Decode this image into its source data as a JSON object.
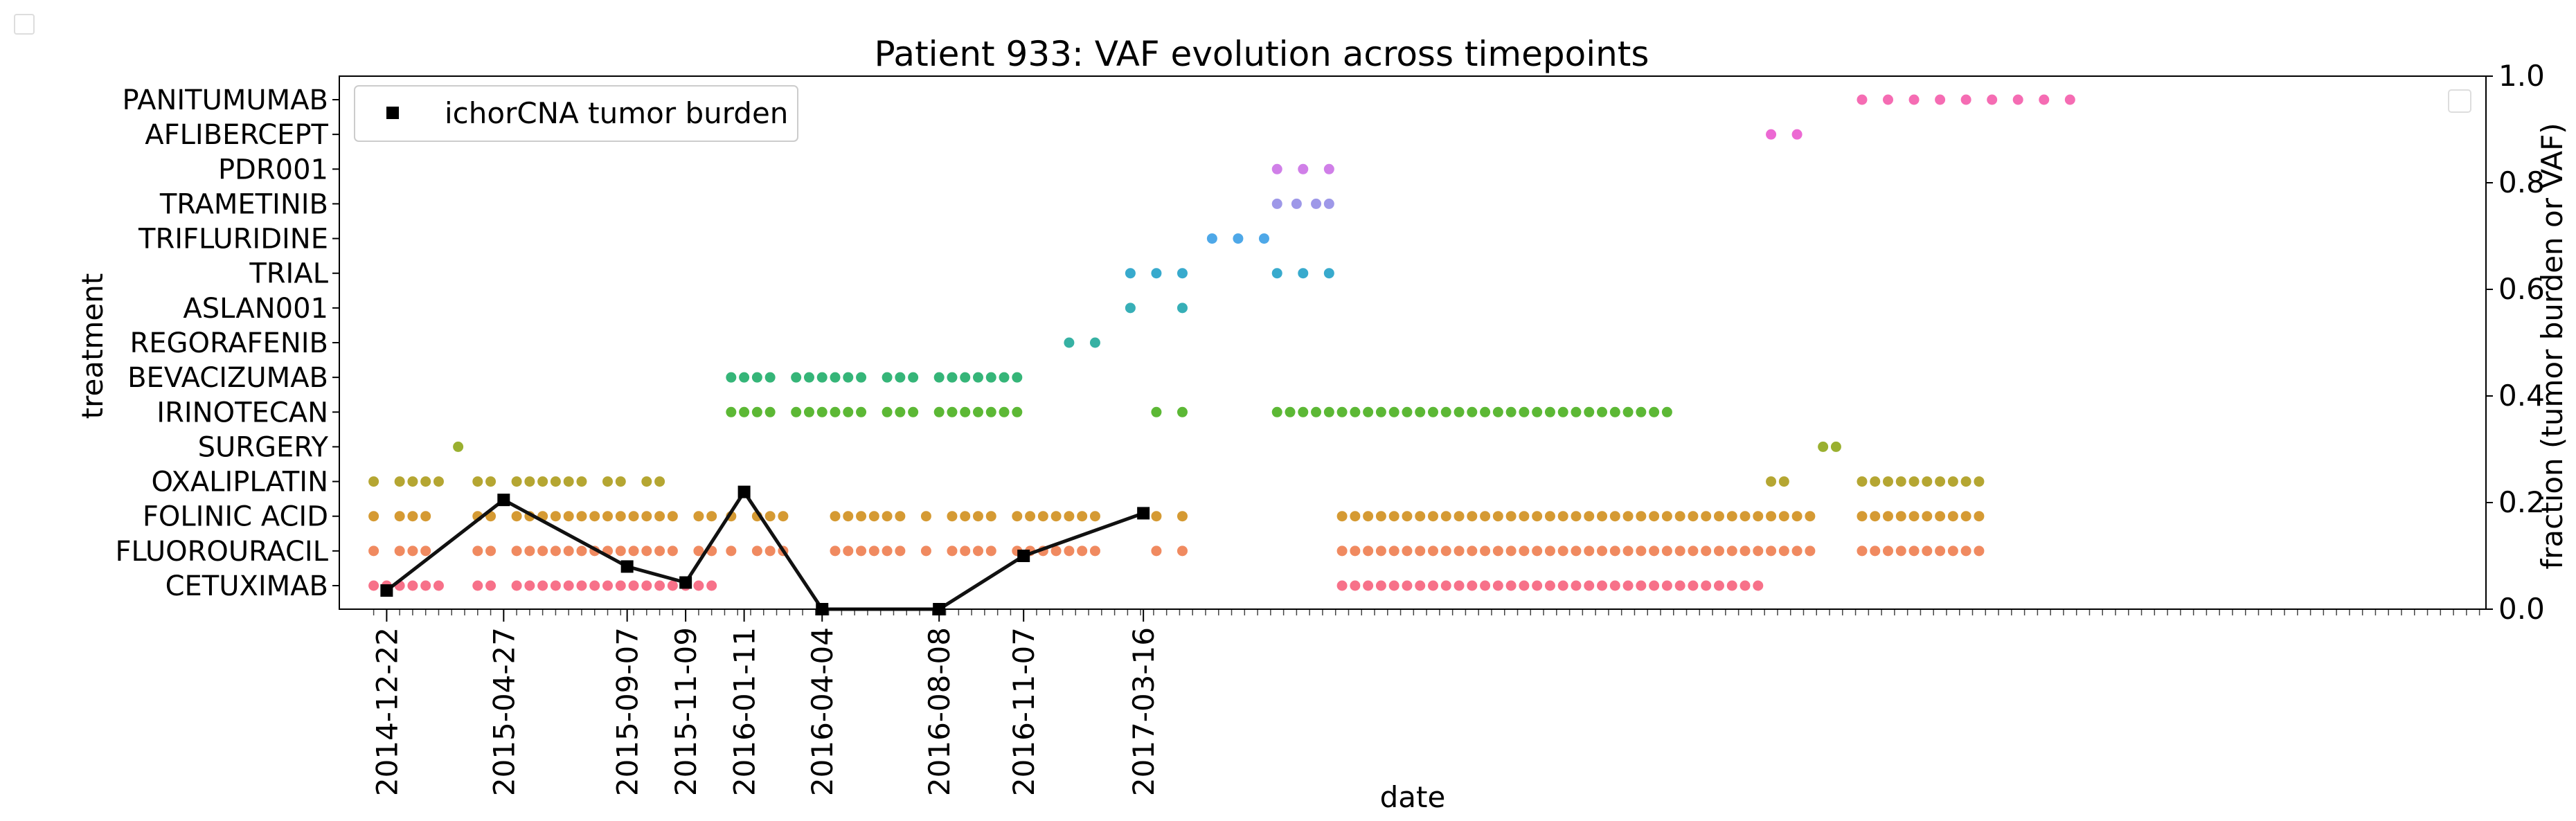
{
  "chart_data": {
    "type": "scatter",
    "title": "Patient 933: VAF evolution across timepoints",
    "xlabel": "date",
    "ylabel": "treatment",
    "y2label": "fraction (tumor burden or VAF)",
    "y2lim": [
      0.0,
      1.0
    ],
    "y2_ticks": [
      "0.0",
      "0.2",
      "0.4",
      "0.6",
      "0.8",
      "1.0"
    ],
    "x_range": [
      "2014-11-01",
      "2021-03-01"
    ],
    "x_tick_labels": [
      "2014-12-22",
      "2015-04-27",
      "2015-09-07",
      "2015-11-09",
      "2016-01-11",
      "2016-04-04",
      "2016-08-08",
      "2016-11-07",
      "2017-03-16"
    ],
    "legend": {
      "location": "top-left",
      "entries": [
        "ichorCNA tumor burden"
      ]
    },
    "treatments": [
      "CETUXIMAB",
      "FLUOROURACIL",
      "FOLINIC ACID",
      "OXALIPLATIN",
      "SURGERY",
      "IRINOTECAN",
      "BEVACIZUMAB",
      "REGORAFENIB",
      "ASLAN001",
      "TRIAL",
      "TRIFLURIDINE",
      "TRAMETINIB",
      "PDR001",
      "AFLIBERCEPT",
      "PANITUMUMAB"
    ],
    "treatment_colors": [
      "#f77189",
      "#f08a60",
      "#d59a33",
      "#b5a632",
      "#9ab030",
      "#5cb835",
      "#35b578",
      "#36b1a3",
      "#37afb7",
      "#38aacd",
      "#4ea8e8",
      "#9e98e8",
      "#d07fe8",
      "#ec69d3",
      "#f56cb3"
    ],
    "treatment_events": [
      {
        "treatment": "CETUXIMAB",
        "dates": [
          "2014-12-08",
          "2014-12-22",
          "2015-01-05",
          "2015-01-19",
          "2015-02-02",
          "2015-02-16",
          "2015-03-30",
          "2015-04-13",
          "2015-05-11",
          "2015-05-25",
          "2015-06-08",
          "2015-06-22",
          "2015-07-06",
          "2015-07-20",
          "2015-08-03",
          "2015-08-17",
          "2015-08-31",
          "2015-09-14",
          "2015-09-28",
          "2015-10-12",
          "2015-10-26",
          "2015-11-09",
          "2015-11-23",
          "2015-12-07",
          "2017-10-16",
          "2017-10-30",
          "2017-11-13",
          "2017-11-27",
          "2017-12-11",
          "2017-12-25",
          "2018-01-08",
          "2018-01-22",
          "2018-02-05",
          "2018-02-19",
          "2018-03-05",
          "2018-03-19",
          "2018-04-02",
          "2018-04-16",
          "2018-04-30",
          "2018-05-14",
          "2018-05-28",
          "2018-06-11",
          "2018-06-25",
          "2018-07-09",
          "2018-07-23",
          "2018-08-06",
          "2018-08-20",
          "2018-09-03",
          "2018-09-17",
          "2018-10-01",
          "2018-10-15",
          "2018-10-29",
          "2018-11-12",
          "2018-11-26",
          "2018-12-10",
          "2018-12-24",
          "2019-01-07"
        ]
      },
      {
        "treatment": "FLUOROURACIL",
        "dates": [
          "2014-12-08",
          "2015-01-05",
          "2015-01-19",
          "2015-02-02",
          "2015-03-30",
          "2015-04-13",
          "2015-05-11",
          "2015-05-25",
          "2015-06-08",
          "2015-06-22",
          "2015-07-06",
          "2015-07-20",
          "2015-08-03",
          "2015-08-17",
          "2015-08-31",
          "2015-09-14",
          "2015-09-28",
          "2015-10-12",
          "2015-10-26",
          "2015-11-23",
          "2015-12-07",
          "2015-12-28",
          "2016-01-25",
          "2016-02-08",
          "2016-02-22",
          "2016-04-18",
          "2016-05-02",
          "2016-05-16",
          "2016-05-30",
          "2016-06-13",
          "2016-06-27",
          "2016-07-25",
          "2016-08-22",
          "2016-09-05",
          "2016-09-19",
          "2016-10-03",
          "2016-10-31",
          "2016-11-14",
          "2016-11-28",
          "2016-12-12",
          "2016-12-26",
          "2017-01-09",
          "2017-01-23",
          "2017-03-30",
          "2017-04-27",
          "2017-10-16",
          "2017-10-30",
          "2017-11-13",
          "2017-11-27",
          "2017-12-11",
          "2017-12-25",
          "2018-01-08",
          "2018-01-22",
          "2018-02-05",
          "2018-02-19",
          "2018-03-05",
          "2018-03-19",
          "2018-04-02",
          "2018-04-16",
          "2018-04-30",
          "2018-05-14",
          "2018-05-28",
          "2018-06-11",
          "2018-06-25",
          "2018-07-09",
          "2018-07-23",
          "2018-08-06",
          "2018-08-20",
          "2018-09-03",
          "2018-09-17",
          "2018-10-01",
          "2018-10-15",
          "2018-10-29",
          "2018-11-12",
          "2018-11-26",
          "2018-12-10",
          "2018-12-24",
          "2019-01-07",
          "2019-01-21",
          "2019-02-04",
          "2019-02-18",
          "2019-03-04",
          "2019-04-29",
          "2019-05-13",
          "2019-05-27",
          "2019-06-10",
          "2019-06-24",
          "2019-07-08",
          "2019-07-22",
          "2019-08-05",
          "2019-08-19",
          "2019-09-02"
        ]
      },
      {
        "treatment": "FOLINIC ACID",
        "dates": [
          "2014-12-08",
          "2015-01-05",
          "2015-01-19",
          "2015-02-02",
          "2015-03-30",
          "2015-04-13",
          "2015-05-11",
          "2015-05-25",
          "2015-06-08",
          "2015-06-22",
          "2015-07-06",
          "2015-07-20",
          "2015-08-03",
          "2015-08-17",
          "2015-08-31",
          "2015-09-14",
          "2015-09-28",
          "2015-10-12",
          "2015-10-26",
          "2015-11-23",
          "2015-12-07",
          "2015-12-28",
          "2016-01-25",
          "2016-02-08",
          "2016-02-22",
          "2016-04-18",
          "2016-05-02",
          "2016-05-16",
          "2016-05-30",
          "2016-06-13",
          "2016-06-27",
          "2016-07-25",
          "2016-08-22",
          "2016-09-05",
          "2016-09-19",
          "2016-10-03",
          "2016-10-31",
          "2016-11-14",
          "2016-11-28",
          "2016-12-12",
          "2016-12-26",
          "2017-01-09",
          "2017-01-23",
          "2017-03-30",
          "2017-04-27",
          "2017-10-16",
          "2017-10-30",
          "2017-11-13",
          "2017-11-27",
          "2017-12-11",
          "2017-12-25",
          "2018-01-08",
          "2018-01-22",
          "2018-02-05",
          "2018-02-19",
          "2018-03-05",
          "2018-03-19",
          "2018-04-02",
          "2018-04-16",
          "2018-04-30",
          "2018-05-14",
          "2018-05-28",
          "2018-06-11",
          "2018-06-25",
          "2018-07-09",
          "2018-07-23",
          "2018-08-06",
          "2018-08-20",
          "2018-09-03",
          "2018-09-17",
          "2018-10-01",
          "2018-10-15",
          "2018-10-29",
          "2018-11-12",
          "2018-11-26",
          "2018-12-10",
          "2018-12-24",
          "2019-01-07",
          "2019-01-21",
          "2019-02-04",
          "2019-02-18",
          "2019-03-04",
          "2019-04-29",
          "2019-05-13",
          "2019-05-27",
          "2019-06-10",
          "2019-06-24",
          "2019-07-08",
          "2019-07-22",
          "2019-08-05",
          "2019-08-19",
          "2019-09-02"
        ]
      },
      {
        "treatment": "OXALIPLATIN",
        "dates": [
          "2014-12-08",
          "2015-01-05",
          "2015-01-19",
          "2015-02-02",
          "2015-02-16",
          "2015-03-30",
          "2015-04-13",
          "2015-05-11",
          "2015-05-25",
          "2015-06-08",
          "2015-06-22",
          "2015-07-06",
          "2015-07-20",
          "2015-08-17",
          "2015-08-31",
          "2015-09-28",
          "2015-10-12",
          "2019-01-21",
          "2019-02-04",
          "2019-04-29",
          "2019-05-13",
          "2019-05-27",
          "2019-06-10",
          "2019-06-24",
          "2019-07-08",
          "2019-07-22",
          "2019-08-05",
          "2019-08-19",
          "2019-09-02"
        ]
      },
      {
        "treatment": "SURGERY",
        "dates": [
          "2015-03-09",
          "2019-03-18",
          "2019-04-01"
        ]
      },
      {
        "treatment": "IRINOTECAN",
        "dates": [
          "2015-12-28",
          "2016-01-11",
          "2016-01-25",
          "2016-02-08",
          "2016-03-07",
          "2016-03-21",
          "2016-04-04",
          "2016-04-18",
          "2016-05-02",
          "2016-05-16",
          "2016-06-13",
          "2016-06-27",
          "2016-07-11",
          "2016-08-08",
          "2016-08-22",
          "2016-09-05",
          "2016-09-19",
          "2016-10-03",
          "2016-10-17",
          "2016-10-31",
          "2017-03-30",
          "2017-04-27",
          "2017-08-07",
          "2017-08-21",
          "2017-09-04",
          "2017-09-18",
          "2017-10-02",
          "2017-10-16",
          "2017-10-30",
          "2017-11-13",
          "2017-11-27",
          "2017-12-11",
          "2017-12-25",
          "2018-01-08",
          "2018-01-22",
          "2018-02-05",
          "2018-02-19",
          "2018-03-05",
          "2018-03-19",
          "2018-04-02",
          "2018-04-16",
          "2018-04-30",
          "2018-05-14",
          "2018-05-28",
          "2018-06-11",
          "2018-06-25",
          "2018-07-09",
          "2018-07-23",
          "2018-08-06",
          "2018-08-20",
          "2018-09-03",
          "2018-09-17",
          "2018-10-01"
        ]
      },
      {
        "treatment": "BEVACIZUMAB",
        "dates": [
          "2015-12-28",
          "2016-01-11",
          "2016-01-25",
          "2016-02-08",
          "2016-03-07",
          "2016-03-21",
          "2016-04-04",
          "2016-04-18",
          "2016-05-02",
          "2016-05-16",
          "2016-06-13",
          "2016-06-27",
          "2016-07-11",
          "2016-08-08",
          "2016-08-22",
          "2016-09-05",
          "2016-09-19",
          "2016-10-03",
          "2016-10-17",
          "2016-10-31"
        ]
      },
      {
        "treatment": "REGORAFENIB",
        "dates": [
          "2016-12-26",
          "2017-01-23"
        ]
      },
      {
        "treatment": "ASLAN001",
        "dates": [
          "2017-03-02",
          "2017-04-27"
        ]
      },
      {
        "treatment": "TRIAL",
        "dates": [
          "2017-03-02",
          "2017-03-30",
          "2017-04-27",
          "2017-08-07",
          "2017-09-04",
          "2017-10-02"
        ]
      },
      {
        "treatment": "TRIFLURIDINE",
        "dates": [
          "2017-05-29",
          "2017-06-26",
          "2017-07-24"
        ]
      },
      {
        "treatment": "TRAMETINIB",
        "dates": [
          "2017-08-07",
          "2017-08-28",
          "2017-09-18",
          "2017-10-02"
        ]
      },
      {
        "treatment": "PDR001",
        "dates": [
          "2017-08-07",
          "2017-09-04",
          "2017-10-02"
        ]
      },
      {
        "treatment": "AFLIBERCEPT",
        "dates": [
          "2019-01-21",
          "2019-02-18"
        ]
      },
      {
        "treatment": "PANITUMUMAB",
        "dates": [
          "2019-04-29",
          "2019-05-27",
          "2019-06-24",
          "2019-07-22",
          "2019-08-19",
          "2019-09-16",
          "2019-10-14",
          "2019-11-11",
          "2019-12-09"
        ]
      }
    ],
    "series": [
      {
        "name": "ichorCNA tumor burden",
        "x": [
          "2014-12-22",
          "2015-04-27",
          "2015-09-07",
          "2015-11-09",
          "2016-01-11",
          "2016-04-04",
          "2016-08-08",
          "2016-11-07",
          "2017-03-16"
        ],
        "y": [
          0.035,
          0.205,
          0.08,
          0.05,
          0.22,
          0.0,
          0.0,
          0.1,
          0.18
        ]
      }
    ]
  }
}
